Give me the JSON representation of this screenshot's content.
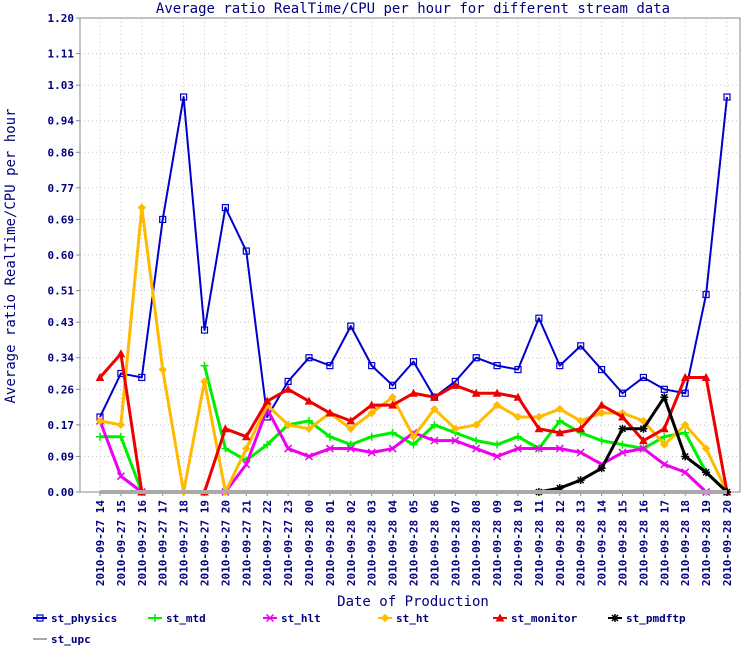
{
  "chart_data": {
    "type": "line",
    "title": "Average ratio RealTime/CPU per hour for different stream data",
    "xlabel": "Date of Production",
    "ylabel": "Average ratio RealTime/CPU per hour",
    "ylim": [
      0,
      1.2
    ],
    "yticks": [
      "0.00",
      "0.09",
      "0.17",
      "0.26",
      "0.34",
      "0.43",
      "0.51",
      "0.60",
      "0.69",
      "0.77",
      "0.86",
      "0.94",
      "1.03",
      "1.11",
      "1.20"
    ],
    "categories": [
      "2010-09-27 14",
      "2010-09-27 15",
      "2010-09-27 16",
      "2010-09-27 17",
      "2010-09-27 18",
      "2010-09-27 19",
      "2010-09-27 20",
      "2010-09-27 21",
      "2010-09-27 22",
      "2010-09-27 23",
      "2010-09-28 00",
      "2010-09-28 01",
      "2010-09-28 02",
      "2010-09-28 03",
      "2010-09-28 04",
      "2010-09-28 05",
      "2010-09-28 06",
      "2010-09-28 07",
      "2010-09-28 08",
      "2010-09-28 09",
      "2010-09-28 10",
      "2010-09-28 11",
      "2010-09-28 12",
      "2010-09-28 13",
      "2010-09-28 14",
      "2010-09-28 15",
      "2010-09-28 16",
      "2010-09-28 17",
      "2010-09-28 18",
      "2010-09-28 19",
      "2010-09-28 20"
    ],
    "grid": true,
    "legend_position": "bottom",
    "series": [
      {
        "name": "st_physics",
        "color": "#0000cc",
        "marker": "square",
        "values": [
          0.19,
          0.3,
          0.29,
          0.69,
          1.0,
          0.41,
          0.72,
          0.61,
          0.19,
          0.28,
          0.34,
          0.32,
          0.42,
          0.32,
          0.27,
          0.33,
          0.24,
          0.28,
          0.34,
          0.32,
          0.31,
          0.44,
          0.32,
          0.37,
          0.31,
          0.25,
          0.29,
          0.26,
          0.25,
          0.5,
          1.0
        ]
      },
      {
        "name": "st_mtd",
        "color": "#00ee00",
        "marker": "plus",
        "values": [
          0.14,
          0.14,
          0.0,
          null,
          null,
          0.32,
          0.11,
          0.08,
          0.12,
          0.17,
          0.18,
          0.14,
          0.12,
          0.14,
          0.15,
          0.12,
          0.17,
          0.15,
          0.13,
          0.12,
          0.14,
          0.11,
          0.18,
          0.15,
          0.13,
          0.12,
          0.11,
          0.14,
          0.15,
          0.05,
          0.0
        ]
      },
      {
        "name": "st_hlt",
        "color": "#ee00ee",
        "marker": "x",
        "values": [
          0.18,
          0.04,
          0.0,
          null,
          null,
          null,
          0.0,
          0.07,
          0.21,
          0.11,
          0.09,
          0.11,
          0.11,
          0.1,
          0.11,
          0.15,
          0.13,
          0.13,
          0.11,
          0.09,
          0.11,
          0.11,
          0.11,
          0.1,
          0.07,
          0.1,
          0.11,
          0.07,
          0.05,
          0.0,
          null
        ]
      },
      {
        "name": "st_ht",
        "color": "#ffbb00",
        "marker": "diamond",
        "values": [
          0.18,
          0.17,
          0.72,
          0.31,
          0.0,
          0.28,
          0.0,
          0.11,
          0.22,
          0.17,
          0.16,
          0.2,
          0.16,
          0.2,
          0.24,
          0.14,
          0.21,
          0.16,
          0.17,
          0.22,
          0.19,
          0.19,
          0.21,
          0.18,
          0.2,
          0.2,
          0.18,
          0.12,
          0.17,
          0.11,
          0.0
        ]
      },
      {
        "name": "st_monitor",
        "color": "#ee0000",
        "marker": "triangle",
        "values": [
          0.29,
          0.35,
          0.0,
          null,
          null,
          0.0,
          0.16,
          0.14,
          0.23,
          0.26,
          0.23,
          0.2,
          0.18,
          0.22,
          0.22,
          0.25,
          0.24,
          0.27,
          0.25,
          0.25,
          0.24,
          0.16,
          0.15,
          0.16,
          0.22,
          0.19,
          0.13,
          0.16,
          0.29,
          0.29,
          0.0
        ]
      },
      {
        "name": "st_pmdftp",
        "color": "#000000",
        "marker": "star",
        "values": [
          null,
          null,
          null,
          null,
          null,
          null,
          null,
          null,
          null,
          null,
          null,
          null,
          null,
          null,
          null,
          null,
          null,
          null,
          null,
          null,
          null,
          0.0,
          0.01,
          0.03,
          0.06,
          0.16,
          0.16,
          0.24,
          0.09,
          0.05,
          0.0
        ]
      },
      {
        "name": "st_upc",
        "color": "#aaaaaa",
        "marker": "none",
        "values": [
          0.0,
          0.0,
          0.0,
          0.0,
          0.0,
          0.0,
          0.0,
          0.0,
          0.0,
          0.0,
          0.0,
          0.0,
          0.0,
          0.0,
          0.0,
          0.0,
          0.0,
          0.0,
          0.0,
          0.0,
          0.0,
          0.0,
          0.0,
          0.0,
          0.0,
          0.0,
          0.0,
          0.0,
          0.0,
          0.0,
          0.0
        ]
      }
    ]
  }
}
